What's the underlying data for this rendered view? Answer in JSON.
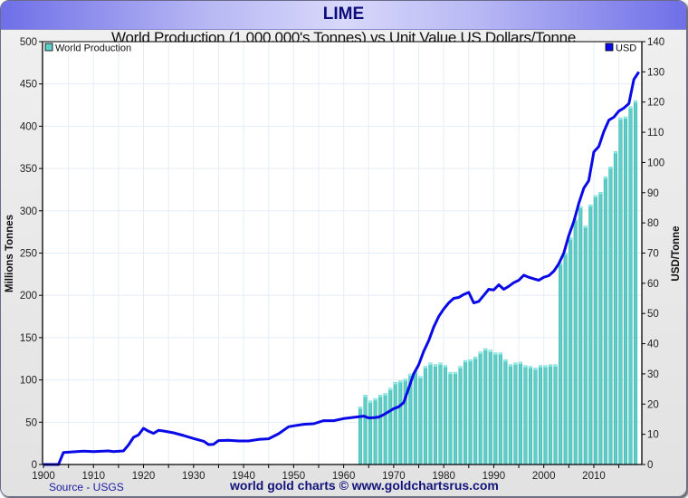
{
  "header": {
    "title": "LIME"
  },
  "footer": {
    "source": "Source - USGS",
    "credit": "world gold charts © www.goldchartsrus.com"
  },
  "colors": {
    "bar": "#5ccfc8",
    "bar_top": "#8ef2ee",
    "line": "#0a0ae6",
    "grid": "#e4eef8"
  },
  "chart_data": {
    "type": "bar",
    "title": "World Production (1,000,000's Tonnes) vs Unit Value US Dollars/Tonne",
    "xlabel": "",
    "ylabel": "Millions Tonnes",
    "y2label": "USD/Tonne",
    "xlim": [
      1900,
      2019
    ],
    "ylim": [
      0,
      500
    ],
    "y2lim": [
      0,
      140
    ],
    "x_ticks": [
      "1900",
      "1910",
      "1920",
      "1930",
      "1940",
      "1950",
      "1960",
      "1970",
      "1980",
      "1990",
      "2000",
      "2010"
    ],
    "y_ticks": [
      "0",
      "50",
      "100",
      "150",
      "200",
      "250",
      "300",
      "350",
      "400",
      "450",
      "500"
    ],
    "y2_ticks": [
      "0",
      "10",
      "20",
      "30",
      "40",
      "50",
      "60",
      "70",
      "80",
      "90",
      "100",
      "110",
      "120",
      "130",
      "140"
    ],
    "grid": true,
    "legend": [
      {
        "name": "World Production",
        "position": "top-left"
      },
      {
        "name": "USD",
        "position": "top-right"
      }
    ],
    "series": [
      {
        "name": "World Production",
        "type": "bar",
        "axis": "left",
        "x": [
          1963,
          1964,
          1965,
          1966,
          1967,
          1968,
          1969,
          1970,
          1971,
          1972,
          1973,
          1974,
          1975,
          1976,
          1977,
          1978,
          1979,
          1980,
          1981,
          1982,
          1983,
          1984,
          1985,
          1986,
          1987,
          1988,
          1989,
          1990,
          1991,
          1992,
          1993,
          1994,
          1995,
          1996,
          1997,
          1998,
          1999,
          2000,
          2001,
          2002,
          2003,
          2004,
          2005,
          2006,
          2007,
          2008,
          2009,
          2010,
          2011,
          2012,
          2013,
          2014,
          2015,
          2016,
          2017,
          2018
        ],
        "values": [
          68,
          82,
          75,
          78,
          82,
          84,
          90,
          97,
          99,
          101,
          107,
          110,
          104,
          116,
          120,
          118,
          120,
          117,
          109,
          109,
          116,
          123,
          124,
          127,
          133,
          137,
          135,
          132,
          132,
          124,
          118,
          120,
          121,
          117,
          116,
          114,
          117,
          117,
          118,
          118,
          238,
          250,
          268,
          290,
          305,
          282,
          307,
          318,
          322,
          340,
          352,
          370,
          410,
          411,
          423,
          430
        ]
      },
      {
        "name": "USD",
        "type": "line",
        "axis": "right",
        "x": [
          1900,
          1903,
          1904,
          1906,
          1908,
          1910,
          1912,
          1913,
          1914,
          1916,
          1917,
          1918,
          1919,
          1920,
          1921,
          1922,
          1923,
          1924,
          1926,
          1928,
          1930,
          1932,
          1933,
          1934,
          1935,
          1937,
          1939,
          1941,
          1943,
          1945,
          1947,
          1949,
          1950,
          1952,
          1954,
          1956,
          1958,
          1960,
          1963,
          1964,
          1965,
          1966,
          1967,
          1968,
          1969,
          1970,
          1971,
          1972,
          1973,
          1974,
          1975,
          1976,
          1977,
          1978,
          1979,
          1980,
          1981,
          1982,
          1983,
          1984,
          1985,
          1986,
          1987,
          1988,
          1989,
          1990,
          1991,
          1992,
          1993,
          1994,
          1995,
          1996,
          1997,
          1998,
          1999,
          2000,
          2001,
          2002,
          2003,
          2004,
          2005,
          2006,
          2007,
          2008,
          2009,
          2010,
          2011,
          2012,
          2013,
          2014,
          2015,
          2016,
          2017,
          2018,
          2019
        ],
        "values": [
          0,
          0,
          4,
          4.2,
          4.4,
          4.3,
          4.4,
          4.5,
          4.3,
          4.5,
          6.5,
          9,
          9.8,
          12,
          11,
          10.3,
          11.3,
          11.1,
          10.5,
          9.6,
          8.6,
          7.7,
          6.6,
          6.7,
          7.9,
          8,
          7.8,
          7.8,
          8.3,
          8.5,
          10.2,
          12.5,
          12.8,
          13.3,
          13.5,
          14.5,
          14.5,
          15.2,
          15.8,
          16,
          15.4,
          15.5,
          15.7,
          16.5,
          17.5,
          18.5,
          19.1,
          20.5,
          25.3,
          30,
          33,
          37.5,
          41,
          45.5,
          49,
          51.5,
          53.5,
          55,
          55.3,
          56.3,
          57,
          53.5,
          54,
          56,
          58,
          57.8,
          59.5,
          58,
          59,
          60.2,
          61,
          62.7,
          62,
          61.5,
          61,
          62,
          62.5,
          64,
          66.5,
          70,
          75.8,
          80.5,
          86.5,
          91.5,
          94,
          103.5,
          105.3,
          110.2,
          114,
          115,
          117,
          118,
          119.5,
          127.5,
          130
        ]
      }
    ]
  }
}
